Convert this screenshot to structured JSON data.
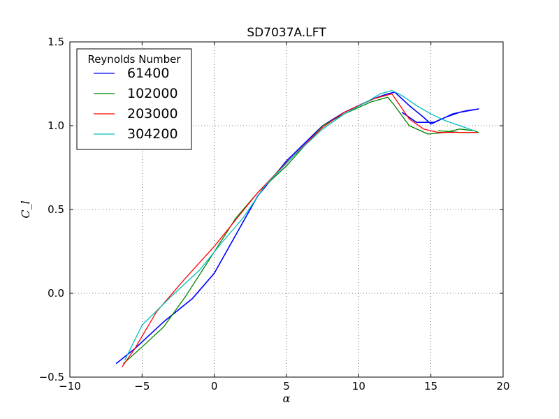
{
  "chart_data": {
    "type": "line",
    "title": "SD7037A.LFT",
    "xlabel": "α",
    "ylabel": "C_l",
    "xlim": [
      -10,
      20
    ],
    "ylim": [
      -0.5,
      1.5
    ],
    "xticks": [
      -10,
      -5,
      0,
      5,
      10,
      15,
      20
    ],
    "xtick_labels": [
      "−10",
      "−5",
      "0",
      "5",
      "10",
      "15",
      "20"
    ],
    "yticks": [
      -0.5,
      0.0,
      0.5,
      1.0,
      1.5
    ],
    "ytick_labels": [
      "−0.5",
      "0.0",
      "0.5",
      "1.0",
      "1.5"
    ],
    "grid": true,
    "legend": {
      "title": "Reynolds Number",
      "position": "top-left"
    },
    "series": [
      {
        "name": "61400",
        "color": "#0000ff",
        "x": [
          -6.8,
          -5.5,
          -3.5,
          -1.5,
          0.0,
          1.5,
          3.0,
          5.0,
          7.5,
          9.0,
          11.0,
          12.0,
          12.5,
          13.5,
          14.5,
          15.0,
          16.5,
          17.5,
          18.3,
          17.0,
          16.0,
          15.2,
          14.0,
          13.0
        ],
        "y": [
          -0.42,
          -0.33,
          -0.17,
          -0.03,
          0.12,
          0.35,
          0.58,
          0.79,
          1.0,
          1.08,
          1.16,
          1.19,
          1.2,
          1.12,
          1.05,
          1.01,
          1.07,
          1.09,
          1.1,
          1.08,
          1.05,
          1.02,
          1.02,
          1.08
        ]
      },
      {
        "name": "102000",
        "color": "#008000",
        "x": [
          -6.3,
          -5.0,
          -3.5,
          -2.0,
          -0.5,
          1.5,
          3.0,
          5.0,
          7.5,
          9.0,
          10.8,
          12.0,
          12.4,
          13.5,
          14.8,
          16.0,
          17.0,
          18.0,
          18.3,
          17.0,
          15.5
        ],
        "y": [
          -0.42,
          -0.32,
          -0.2,
          -0.02,
          0.18,
          0.45,
          0.6,
          0.76,
          1.0,
          1.07,
          1.14,
          1.17,
          1.13,
          1.0,
          0.95,
          0.96,
          0.98,
          0.97,
          0.96,
          0.96,
          0.97
        ]
      },
      {
        "name": "203000",
        "color": "#ff0000",
        "x": [
          -6.4,
          -5.5,
          -4.0,
          -2.0,
          0.0,
          1.5,
          3.0,
          5.0,
          7.5,
          9.0,
          11.0,
          12.3,
          13.5,
          14.5,
          15.5,
          16.5,
          17.5,
          18.2
        ],
        "y": [
          -0.44,
          -0.33,
          -0.11,
          0.09,
          0.28,
          0.44,
          0.6,
          0.78,
          0.99,
          1.08,
          1.16,
          1.19,
          1.04,
          0.98,
          0.96,
          0.96,
          0.96,
          0.96
        ]
      },
      {
        "name": "304200",
        "color": "#00bfbf",
        "x": [
          -6.2,
          -5.0,
          -3.0,
          -1.0,
          0.5,
          2.0,
          3.5,
          5.5,
          7.5,
          9.0,
          10.5,
          11.5,
          12.3,
          13.0,
          14.0,
          15.0,
          16.0,
          17.0,
          18.0
        ],
        "y": [
          -0.4,
          -0.19,
          -0.02,
          0.14,
          0.3,
          0.45,
          0.64,
          0.82,
          0.98,
          1.07,
          1.14,
          1.19,
          1.21,
          1.18,
          1.12,
          1.07,
          1.03,
          1.0,
          0.97
        ]
      }
    ]
  }
}
